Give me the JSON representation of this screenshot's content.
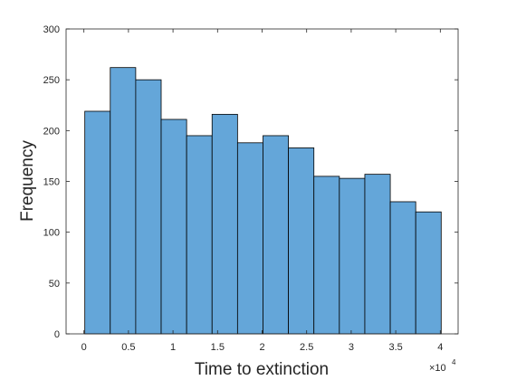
{
  "chart_data": {
    "type": "bar",
    "subtype": "histogram",
    "title": "",
    "xlabel": "Time to extinction",
    "ylabel": "Frequency",
    "x_exponent_label": "×10",
    "x_exponent_power": "4",
    "bin_width": 2857,
    "bin_edges": [
      100,
      2957,
      5814,
      8671,
      11529,
      14386,
      17243,
      20100,
      22957,
      25814,
      28671,
      31529,
      34386,
      37243,
      40100
    ],
    "values": [
      219,
      262,
      250,
      211,
      195,
      216,
      188,
      195,
      183,
      155,
      153,
      157,
      130,
      120
    ],
    "xlim": [
      -2000,
      42000
    ],
    "ylim": [
      0,
      300
    ],
    "xticks": [
      0,
      5000,
      10000,
      15000,
      20000,
      25000,
      30000,
      35000,
      40000
    ],
    "xtick_labels": [
      "0",
      "0.5",
      "1",
      "1.5",
      "2",
      "2.5",
      "3",
      "3.5",
      "4"
    ],
    "yticks": [
      0,
      50,
      100,
      150,
      200,
      250,
      300
    ],
    "ytick_labels": [
      "0",
      "50",
      "100",
      "150",
      "200",
      "250",
      "300"
    ],
    "bar_color": "#64a6d9",
    "edge_color": "#000000",
    "grid": false,
    "box": true
  }
}
